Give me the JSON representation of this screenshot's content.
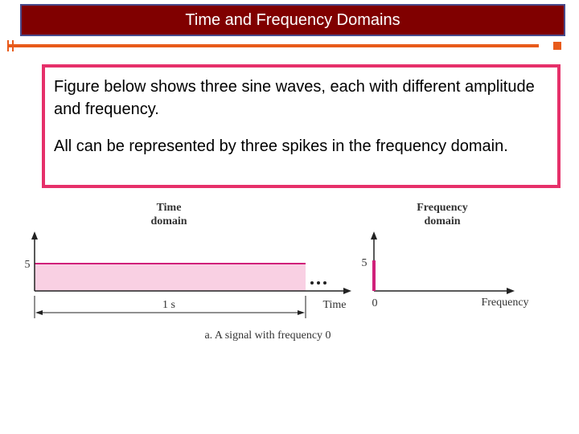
{
  "header": {
    "title": "Time and Frequency Domains"
  },
  "body": {
    "paragraphs": [
      "Figure below shows three sine waves, each with different amplitude and frequency.",
      "All can be represented by three spikes in the frequency domain."
    ]
  },
  "figure": {
    "time_domain": {
      "title_lines": [
        "Time",
        "domain"
      ],
      "amplitude_label": "5",
      "axis_label": "Time",
      "duration_label": "1 s"
    },
    "frequency_domain": {
      "title_lines": [
        "Frequency",
        "domain"
      ],
      "amplitude_label": "5",
      "origin_label": "0",
      "axis_label": "Frequency"
    },
    "caption": "a. A signal with frequency 0"
  }
}
